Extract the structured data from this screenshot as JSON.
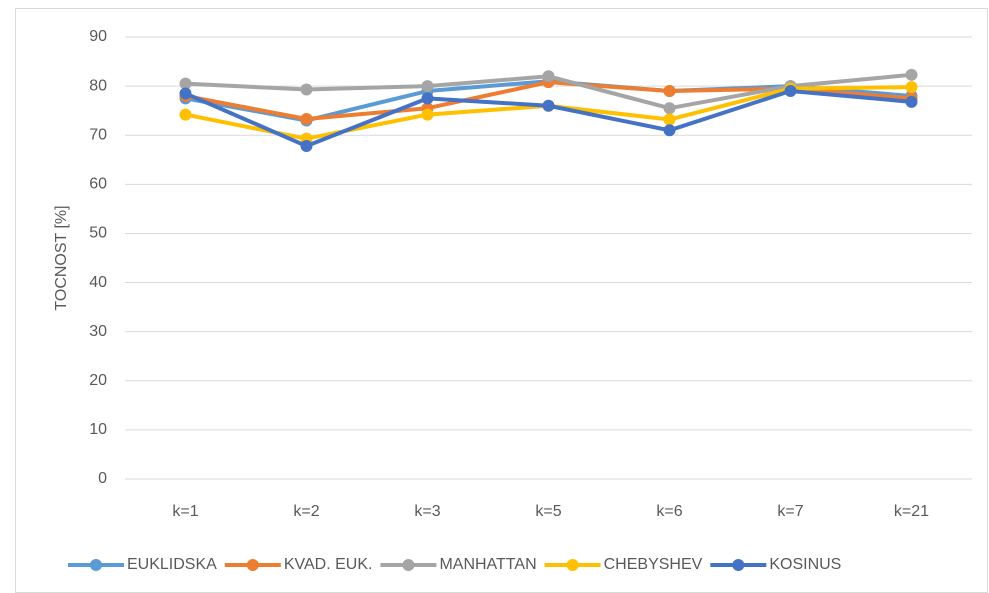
{
  "chart_data": {
    "type": "line",
    "y_label": "TOCNOST [%]",
    "categories": [
      "k=1",
      "k=2",
      "k=3",
      "k=5",
      "k=6",
      "k=7",
      "k=21"
    ],
    "series": [
      {
        "name": "EUKLIDSKA",
        "color": "#5b9bd5",
        "values": [
          77.5,
          73,
          79,
          81,
          79,
          80,
          78
        ]
      },
      {
        "name": "KVAD. EUK.",
        "color": "#ed7d31",
        "values": [
          78,
          73.3,
          75.5,
          80.8,
          79,
          79.5,
          77.5
        ]
      },
      {
        "name": "MANHATTAN",
        "color": "#a5a5a5",
        "values": [
          80.5,
          79.3,
          80,
          82,
          75.5,
          80,
          82.3
        ]
      },
      {
        "name": "CHEBYSHEV",
        "color": "#ffc000",
        "values": [
          74.2,
          69.3,
          74.2,
          76,
          73.2,
          79.5,
          79.8
        ]
      },
      {
        "name": "KOSINUS",
        "color": "#4472c4",
        "values": [
          78.5,
          67.8,
          77.5,
          76,
          71,
          79,
          76.8
        ]
      }
    ],
    "ylim": [
      0,
      90
    ],
    "yticks": [
      0,
      10,
      20,
      30,
      40,
      50,
      60,
      70,
      80,
      90
    ],
    "grid": true,
    "legend": "bottom"
  }
}
